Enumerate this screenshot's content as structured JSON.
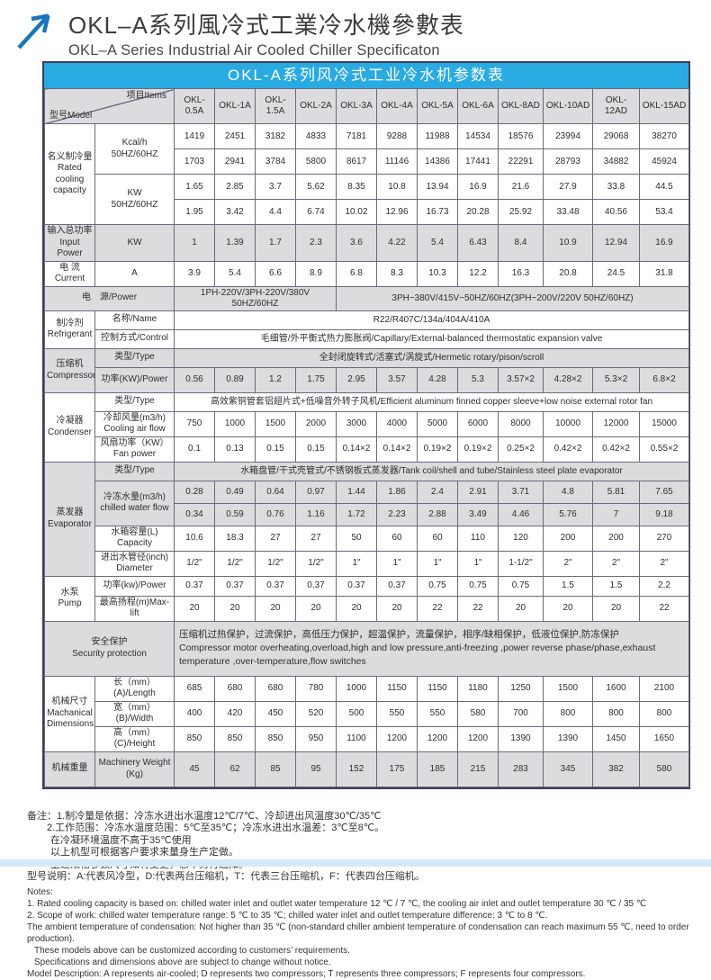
{
  "page": {
    "title_zh": "OKL–A系列風冷式工業冷水機參數表",
    "title_en": "OKL–A Series Industrial Air Cooled Chiller Specificaton",
    "banner": "OKL-A系列风冷式工业冷水机参数表",
    "accent_color": "#29abe2",
    "arrow_color": "#1b75bc",
    "shade_color": "#dcdcde"
  },
  "table": {
    "corner": {
      "model": "型号Model",
      "items": "项目Items"
    },
    "models": [
      "OKL-0.5A",
      "OKL-1A",
      "OKL-1.5A",
      "OKL-2A",
      "OKL-3A",
      "OKL-4A",
      "OKL-5A",
      "OKL-6A",
      "OKL-8AD",
      "OKL-10AD",
      "OKL-12AD",
      "OKL-15AD"
    ],
    "labels": {
      "rated": "名义制冷量\nRated cooling capacity",
      "kcal": "Kcal/h\n50HZ/60HZ",
      "kw": "KW\n50HZ/60HZ",
      "input_power": "输入总功率\nInput Power",
      "input_unit": "KW",
      "current": "电 流\nCurrent",
      "current_unit": "A",
      "power_supply": "电　源/Power",
      "refrigerant": "制冷剂\nRefrigerant",
      "name": "名称/Name",
      "control": "控制方式/Control",
      "compressor": "压缩机\nCompressor",
      "type": "类型/Type",
      "comp_power": "功率(KW)/Power",
      "condenser": "冷凝器\nCondenser",
      "air_flow": "冷却风量(m3/h)\nCooling air flow",
      "fan_power": "风扇功率（KW）\nFan power",
      "evaporator": "蒸发器\nEvaporator",
      "chilled": "冷冻水量(m3/h)\nchilled water flow",
      "capacity": "水箱容量(L)\nCapacity",
      "diameter": "进出水管径(inch)\nDiameter",
      "pump": "水泵\nPump",
      "pump_power": "功率(kw)/Power",
      "max_lift": "最高扬程(m)Max-lift",
      "security": "安全保护\nSecurity protection",
      "dimensions": "机械尺寸\nMachanical\nDimensions",
      "length": "长（mm）(A)/Length",
      "width": "宽（mm）(B)/Width",
      "height": "高（mm）(C)/Height",
      "weight_zh": "机械重量",
      "weight_en": "Machinery Weight\n(Kg)"
    },
    "merged": {
      "power_supply_left": "1PH-220V/3PH-220V/380V 50HZ/60HZ",
      "power_supply_right": "3PH~380V/415V~50HZ/60HZ(3PH~200V/220V 50HZ/60HZ)",
      "refrigerant_name": "R22/R407C/134a/404A/410A",
      "refrigerant_control": "毛细管/外平衡式热力膨胀阀/Capillary/External-balanced thermostatic expansion valve",
      "compressor_type": "全封闭旋转式/活塞式/涡旋式/Hermetic rotary/pison/scroll",
      "condenser_type": "高效紫铜管套铝翅片式+低噪音外转子风机/Efficient aluminum finned copper sleeve+low noise external rotor fan",
      "evaporator_type": "水箱盘管/干式壳管式/不锈钢板式蒸发器/Tank coil/shell and tube/Stainless steel plate evaporator",
      "security_zh": "压缩机过热保护，过流保护，高低压力保护，超温保护，流量保护，相序/缺相保护，低液位保护,防冻保护",
      "security_en": "Compressor motor overheating,overload,high and low pressure,anti-freezing ,power reverse phase/phase,exhaust temperature ,over-temperature,flow switches"
    },
    "rows": {
      "kcal_50": [
        "1419",
        "2451",
        "3182",
        "4833",
        "7181",
        "9288",
        "11988",
        "14534",
        "18576",
        "23994",
        "29068",
        "38270"
      ],
      "kcal_60": [
        "1703",
        "2941",
        "3784",
        "5800",
        "8617",
        "11146",
        "14386",
        "17441",
        "22291",
        "28793",
        "34882",
        "45924"
      ],
      "kw_50": [
        "1.65",
        "2.85",
        "3.7",
        "5.62",
        "8.35",
        "10.8",
        "13.94",
        "16.9",
        "21.6",
        "27.9",
        "33.8",
        "44.5"
      ],
      "kw_60": [
        "1.95",
        "3.42",
        "4.4",
        "6.74",
        "10.02",
        "12.96",
        "16.73",
        "20.28",
        "25.92",
        "33.48",
        "40.56",
        "53.4"
      ],
      "input_power": [
        "1",
        "1.39",
        "1.7",
        "2.3",
        "3.6",
        "4.22",
        "5.4",
        "6.43",
        "8.4",
        "10.9",
        "12.94",
        "16.9"
      ],
      "current": [
        "3.9",
        "5.4",
        "6.6",
        "8.9",
        "6.8",
        "8.3",
        "10.3",
        "12.2",
        "16.3",
        "20.8",
        "24.5",
        "31.8"
      ],
      "compressor_power": [
        "0.56",
        "0.89",
        "1.2",
        "1.75",
        "2.95",
        "3.57",
        "4.28",
        "5.3",
        "3.57×2",
        "4.28×2",
        "5.3×2",
        "6.8×2"
      ],
      "cooling_air_flow": [
        "750",
        "1000",
        "1500",
        "2000",
        "3000",
        "4000",
        "5000",
        "6000",
        "8000",
        "10000",
        "12000",
        "15000"
      ],
      "fan_power": [
        "0.1",
        "0.13",
        "0.15",
        "0.15",
        "0.14×2",
        "0.14×2",
        "0.19×2",
        "0.19×2",
        "0.25×2",
        "0.42×2",
        "0.42×2",
        "0.55×2"
      ],
      "chilled_50": [
        "0.28",
        "0.49",
        "0.64",
        "0.97",
        "1.44",
        "1.86",
        "2.4",
        "2.91",
        "3.71",
        "4.8",
        "5.81",
        "7.65"
      ],
      "chilled_60": [
        "0.34",
        "0.59",
        "0.76",
        "1.16",
        "1.72",
        "2.23",
        "2.88",
        "3.49",
        "4.46",
        "5.76",
        "7",
        "9.18"
      ],
      "tank_capacity": [
        "10.6",
        "18.3",
        "27",
        "27",
        "50",
        "60",
        "60",
        "110",
        "120",
        "200",
        "200",
        "270"
      ],
      "pipe_diameter": [
        "1/2\"",
        "1/2\"",
        "1/2\"",
        "1/2\"",
        "1\"",
        "1\"",
        "1\"",
        "1\"",
        "1-1/2\"",
        "2\"",
        "2\"",
        "2\""
      ],
      "pump_power": [
        "0.37",
        "0.37",
        "0.37",
        "0.37",
        "0.37",
        "0.37",
        "0.75",
        "0.75",
        "0.75",
        "1.5",
        "1.5",
        "2.2"
      ],
      "max_lift": [
        "20",
        "20",
        "20",
        "20",
        "20",
        "20",
        "22",
        "22",
        "20",
        "20",
        "20",
        "22"
      ],
      "length": [
        "685",
        "680",
        "680",
        "780",
        "1000",
        "1150",
        "1150",
        "1180",
        "1250",
        "1500",
        "1600",
        "2100"
      ],
      "width": [
        "400",
        "420",
        "450",
        "520",
        "500",
        "550",
        "550",
        "580",
        "700",
        "800",
        "800",
        "800"
      ],
      "height": [
        "850",
        "850",
        "850",
        "950",
        "1100",
        "1200",
        "1200",
        "1200",
        "1390",
        "1390",
        "1450",
        "1650"
      ],
      "weight": [
        "45",
        "62",
        "85",
        "95",
        "152",
        "175",
        "185",
        "215",
        "283",
        "345",
        "382",
        "580"
      ]
    }
  },
  "notes": {
    "zh": [
      "备注：1.制冷量是依据：冷冻水进出水温度12℃/7℃、冷却进出风温度30℃/35℃",
      "2.工作范围：冷冻水温度范围：5℃至35℃；冷冻水进出水温差：3℃至8℃。",
      "在冷凝环境温度不高于35℃使用",
      "以上机型可根据客户要求来量身生产定做。",
      "上述规格参数尺寸如有变更，恕不另行通知。",
      "型号说明：A:代表风冷型，D:代表两台压缩机，T：代表三台压缩机，F：代表四台压缩机。"
    ],
    "en": [
      "Notes:",
      "1. Rated cooling capacity is based on: chilled water inlet and outlet water temperature 12 ℃ / 7 ℃, the cooling air inlet and outlet temperature 30 ℃ / 35 ℃",
      "2. Scope of work: chilled water temperature range: 5 ℃ to 35 ℃; chilled water inlet and outlet temperature difference: 3 ℃ to 8 ℃.",
      "The ambient temperature of condensation: Not higher than 35 ℃ (non-standard chiller ambient temperature of condensation can reach maximum 55 ℃, need to order production).",
      "These models above can be customized according to customers’  requirements.",
      "Specifications and dimensions above are subject to change without notice.",
      "Model Description: A represents air-cooled; D represents two compressors; T represents three compressors; F represents four compressors."
    ]
  }
}
